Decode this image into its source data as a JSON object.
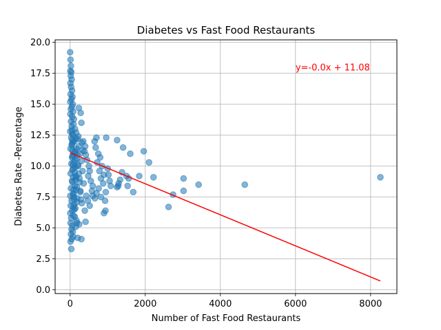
{
  "chart_data": {
    "type": "scatter",
    "title": "Diabetes vs Fast Food Restaurants",
    "xlabel": "Number of Fast Food Restaurants",
    "ylabel": "Diabetes Rate -Percentage",
    "xlim": [
      -400,
      8700
    ],
    "ylim": [
      -0.3,
      20.2
    ],
    "xticks": [
      0,
      2000,
      4000,
      6000,
      8000
    ],
    "xtick_labels": [
      "0",
      "2000",
      "4000",
      "6000",
      "8000"
    ],
    "yticks": [
      0.0,
      2.5,
      5.0,
      7.5,
      10.0,
      12.5,
      15.0,
      17.5,
      20.0
    ],
    "ytick_labels": [
      "0.0",
      "2.5",
      "5.0",
      "7.5",
      "10.0",
      "12.5",
      "15.0",
      "17.5",
      "20.0"
    ],
    "grid": true,
    "colors": {
      "points": "#1f77b4",
      "fit_line": "#ff0000",
      "annotation": "#ff0000"
    },
    "marker_opacity": 0.55,
    "annotation": {
      "text": "y=-0.0x + 11.08",
      "x": 6000,
      "y": 18.0
    },
    "fit_line": {
      "x": [
        0,
        8260
      ],
      "y": [
        11.08,
        0.72
      ]
    },
    "series": [
      {
        "points": [
          [
            0,
            19.2
          ],
          [
            10,
            18.6
          ],
          [
            20,
            18.1
          ],
          [
            5,
            17.7
          ],
          [
            30,
            17.6
          ],
          [
            15,
            17.3
          ],
          [
            40,
            17.0
          ],
          [
            8,
            16.7
          ],
          [
            25,
            16.4
          ],
          [
            50,
            16.1
          ],
          [
            12,
            15.8
          ],
          [
            60,
            15.6
          ],
          [
            35,
            15.4
          ],
          [
            3,
            15.2
          ],
          [
            70,
            15.0
          ],
          [
            45,
            14.8
          ],
          [
            18,
            14.6
          ],
          [
            80,
            14.4
          ],
          [
            6,
            14.2
          ],
          [
            55,
            14.0
          ],
          [
            100,
            13.8
          ],
          [
            22,
            13.6
          ],
          [
            90,
            13.4
          ],
          [
            40,
            13.2
          ],
          [
            130,
            13.0
          ],
          [
            2,
            12.8
          ],
          [
            160,
            12.7
          ],
          [
            75,
            12.5
          ],
          [
            28,
            12.3
          ],
          [
            200,
            12.2
          ],
          [
            110,
            12.0
          ],
          [
            50,
            11.8
          ],
          [
            230,
            11.6
          ],
          [
            9,
            11.4
          ],
          [
            140,
            11.2
          ],
          [
            260,
            11.0
          ],
          [
            65,
            10.8
          ],
          [
            180,
            10.6
          ],
          [
            300,
            10.4
          ],
          [
            33,
            10.2
          ],
          [
            210,
            10.0
          ],
          [
            85,
            9.8
          ],
          [
            330,
            9.6
          ],
          [
            14,
            9.4
          ],
          [
            150,
            9.2
          ],
          [
            250,
            9.0
          ],
          [
            48,
            8.8
          ],
          [
            360,
            8.6
          ],
          [
            120,
            8.4
          ],
          [
            20,
            8.2
          ],
          [
            270,
            8.0
          ],
          [
            95,
            7.8
          ],
          [
            5,
            7.6
          ],
          [
            190,
            7.4
          ],
          [
            38,
            7.2
          ],
          [
            310,
            7.0
          ],
          [
            16,
            6.8
          ],
          [
            140,
            6.6
          ],
          [
            60,
            6.4
          ],
          [
            4,
            6.2
          ],
          [
            90,
            6.0
          ],
          [
            26,
            5.8
          ],
          [
            170,
            5.6
          ],
          [
            11,
            5.4
          ],
          [
            60,
            5.2
          ],
          [
            150,
            5.1
          ],
          [
            35,
            4.9
          ],
          [
            70,
            4.7
          ],
          [
            20,
            4.5
          ],
          [
            80,
            4.3
          ],
          [
            40,
            4.1
          ],
          [
            10,
            3.9
          ],
          [
            30,
            3.3
          ],
          [
            200,
            4.2
          ],
          [
            300,
            4.1
          ],
          [
            240,
            5.3
          ],
          [
            180,
            5.4
          ],
          [
            280,
            14.3
          ],
          [
            230,
            14.7
          ],
          [
            300,
            13.5
          ],
          [
            220,
            12.4
          ],
          [
            350,
            12.0
          ],
          [
            400,
            11.6
          ],
          [
            380,
            11.2
          ],
          [
            420,
            10.9
          ],
          [
            450,
            10.5
          ],
          [
            500,
            10.0
          ],
          [
            520,
            9.6
          ],
          [
            480,
            9.2
          ],
          [
            550,
            8.8
          ],
          [
            600,
            8.4
          ],
          [
            580,
            8.0
          ],
          [
            430,
            7.6
          ],
          [
            470,
            7.2
          ],
          [
            520,
            6.8
          ],
          [
            390,
            6.4
          ],
          [
            410,
            5.5
          ],
          [
            650,
            12.0
          ],
          [
            700,
            12.3
          ],
          [
            680,
            11.5
          ],
          [
            750,
            11.0
          ],
          [
            800,
            10.7
          ],
          [
            720,
            10.3
          ],
          [
            850,
            10.0
          ],
          [
            780,
            9.6
          ],
          [
            900,
            9.3
          ],
          [
            820,
            9.0
          ],
          [
            880,
            8.6
          ],
          [
            760,
            8.2
          ],
          [
            700,
            7.8
          ],
          [
            820,
            7.5
          ],
          [
            660,
            7.4
          ],
          [
            600,
            7.6
          ],
          [
            930,
            7.2
          ],
          [
            950,
            7.9
          ],
          [
            900,
            6.2
          ],
          [
            940,
            6.4
          ],
          [
            960,
            12.3
          ],
          [
            1000,
            9.8
          ],
          [
            1020,
            9.3
          ],
          [
            1050,
            8.8
          ],
          [
            1080,
            8.4
          ],
          [
            1250,
            12.1
          ],
          [
            1290,
            8.6
          ],
          [
            1330,
            8.9
          ],
          [
            1280,
            8.4
          ],
          [
            1250,
            8.3
          ],
          [
            1380,
            9.5
          ],
          [
            1410,
            11.5
          ],
          [
            1500,
            9.2
          ],
          [
            1530,
            8.4
          ],
          [
            1560,
            9.0
          ],
          [
            1600,
            11.0
          ],
          [
            1680,
            7.9
          ],
          [
            1840,
            9.2
          ],
          [
            1960,
            11.2
          ],
          [
            2100,
            10.3
          ],
          [
            2220,
            9.1
          ],
          [
            2620,
            6.7
          ],
          [
            2740,
            7.7
          ],
          [
            3020,
            9.0
          ],
          [
            3020,
            8.0
          ],
          [
            3420,
            8.5
          ],
          [
            4650,
            8.5
          ],
          [
            8260,
            9.1
          ],
          [
            150,
            12.2
          ],
          [
            170,
            11.4
          ],
          [
            190,
            10.9
          ],
          [
            210,
            10.1
          ],
          [
            230,
            9.4
          ],
          [
            250,
            8.7
          ],
          [
            270,
            7.9
          ],
          [
            290,
            7.3
          ],
          [
            310,
            11.9
          ],
          [
            330,
            11.3
          ],
          [
            120,
            11.1
          ],
          [
            130,
            10.5
          ],
          [
            140,
            9.9
          ],
          [
            160,
            9.1
          ],
          [
            180,
            8.3
          ],
          [
            100,
            7.5
          ],
          [
            110,
            6.9
          ],
          [
            60,
            12.6
          ],
          [
            70,
            11.9
          ],
          [
            80,
            10.9
          ],
          [
            100,
            10.3
          ],
          [
            120,
            9.5
          ],
          [
            140,
            8.9
          ],
          [
            160,
            8.1
          ],
          [
            180,
            7.1
          ],
          [
            40,
            11.7
          ],
          [
            50,
            10.7
          ],
          [
            60,
            9.7
          ],
          [
            70,
            8.7
          ],
          [
            80,
            7.7
          ],
          [
            90,
            6.7
          ],
          [
            45,
            12.9
          ],
          [
            55,
            12.1
          ],
          [
            65,
            11.3
          ],
          [
            75,
            10.1
          ],
          [
            85,
            9.1
          ],
          [
            95,
            8.1
          ],
          [
            105,
            7.3
          ],
          [
            115,
            6.5
          ],
          [
            125,
            5.9
          ]
        ]
      }
    ]
  }
}
